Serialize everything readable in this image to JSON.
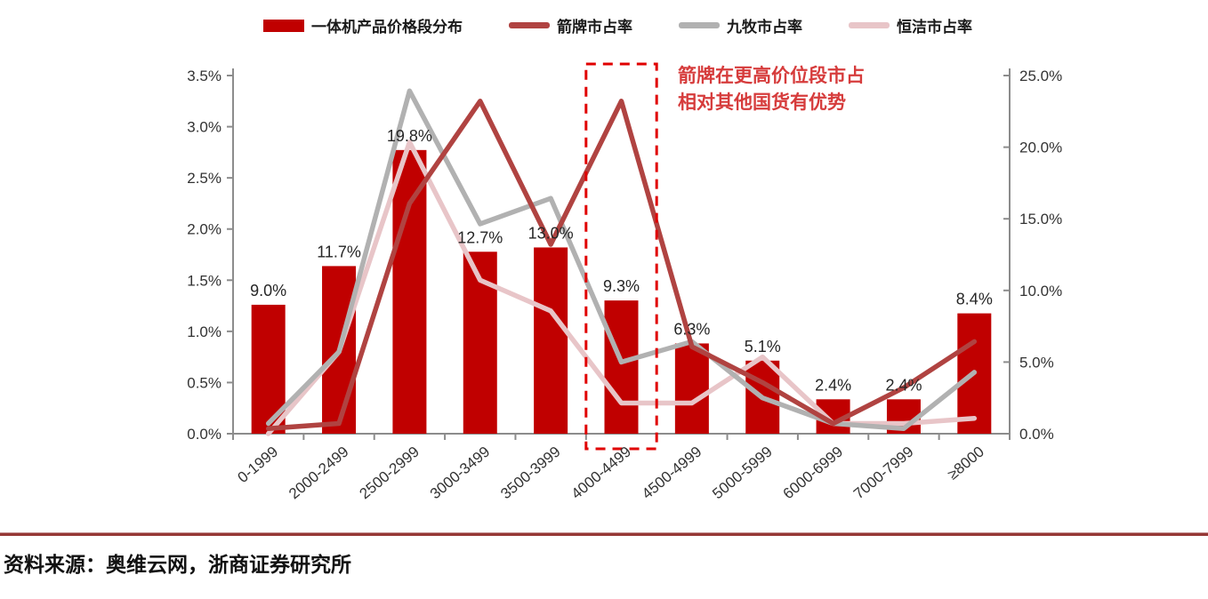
{
  "legend": {
    "items": [
      {
        "label": "一体机产品价格段分布",
        "color": "#C00000",
        "type": "bar"
      },
      {
        "label": "箭牌市占率",
        "color": "#B04341",
        "type": "line"
      },
      {
        "label": "九牧市占率",
        "color": "#B1B1B1",
        "type": "line"
      },
      {
        "label": "恒洁市占率",
        "color": "#E8C5C8",
        "type": "line"
      }
    ]
  },
  "chart_data": {
    "type": "combo-bar-line",
    "categories": [
      "0-1999",
      "2000-2499",
      "2500-2999",
      "3000-3499",
      "3500-3999",
      "4000-4499",
      "4500-4999",
      "5000-5999",
      "6000-6999",
      "7000-7999",
      "≥8000"
    ],
    "bar_series": {
      "name": "一体机产品价格段分布",
      "axis": "right",
      "color": "#C00000",
      "values": [
        9.0,
        11.7,
        19.8,
        12.7,
        13.0,
        9.3,
        6.3,
        5.1,
        2.4,
        2.4,
        8.4
      ],
      "labels": [
        "9.0%",
        "11.7%",
        "19.8%",
        "12.7%",
        "13.0%",
        "9.3%",
        "6.3%",
        "5.1%",
        "2.4%",
        "2.4%",
        "8.4%"
      ]
    },
    "line_series": [
      {
        "name": "箭牌市占率",
        "axis": "left",
        "color": "#B04341",
        "values": [
          0.05,
          0.1,
          2.25,
          3.25,
          1.85,
          3.25,
          0.85,
          0.5,
          0.1,
          0.45,
          0.9
        ]
      },
      {
        "name": "九牧市占率",
        "axis": "left",
        "color": "#B1B1B1",
        "values": [
          0.1,
          0.8,
          3.35,
          2.05,
          2.3,
          0.7,
          0.9,
          0.35,
          0.1,
          0.05,
          0.6
        ]
      },
      {
        "name": "恒洁市占率",
        "axis": "left",
        "color": "#E8C5C8",
        "values": [
          0.0,
          0.8,
          2.85,
          1.5,
          1.2,
          0.3,
          0.3,
          0.75,
          0.1,
          0.1,
          0.15
        ]
      }
    ],
    "left_axis": {
      "min": 0,
      "max": 3.5,
      "step": 0.5,
      "tick_labels": [
        "0.0%",
        "0.5%",
        "1.0%",
        "1.5%",
        "2.0%",
        "2.5%",
        "3.0%",
        "3.5%"
      ]
    },
    "right_axis": {
      "min": 0,
      "max": 25,
      "step": 5,
      "tick_labels": [
        "0.0%",
        "5.0%",
        "10.0%",
        "15.0%",
        "20.0%",
        "25.0%"
      ]
    },
    "grid": "off",
    "legend_position": "top",
    "highlight_box": {
      "category": "4000-4499",
      "category_index": 5,
      "color": "#E00000",
      "style": "dashed"
    },
    "annotation": {
      "line1": "箭牌在更高价位段市占",
      "line2": "相对其他国货有优势",
      "color": "#D63C3C"
    }
  },
  "source": {
    "text": "资料来源：奥维云网，浙商证券研究所"
  },
  "colors": {
    "axis": "#8C8C8C",
    "tick_label": "#333333",
    "bar_label": "#262626",
    "divider": "#953735"
  }
}
